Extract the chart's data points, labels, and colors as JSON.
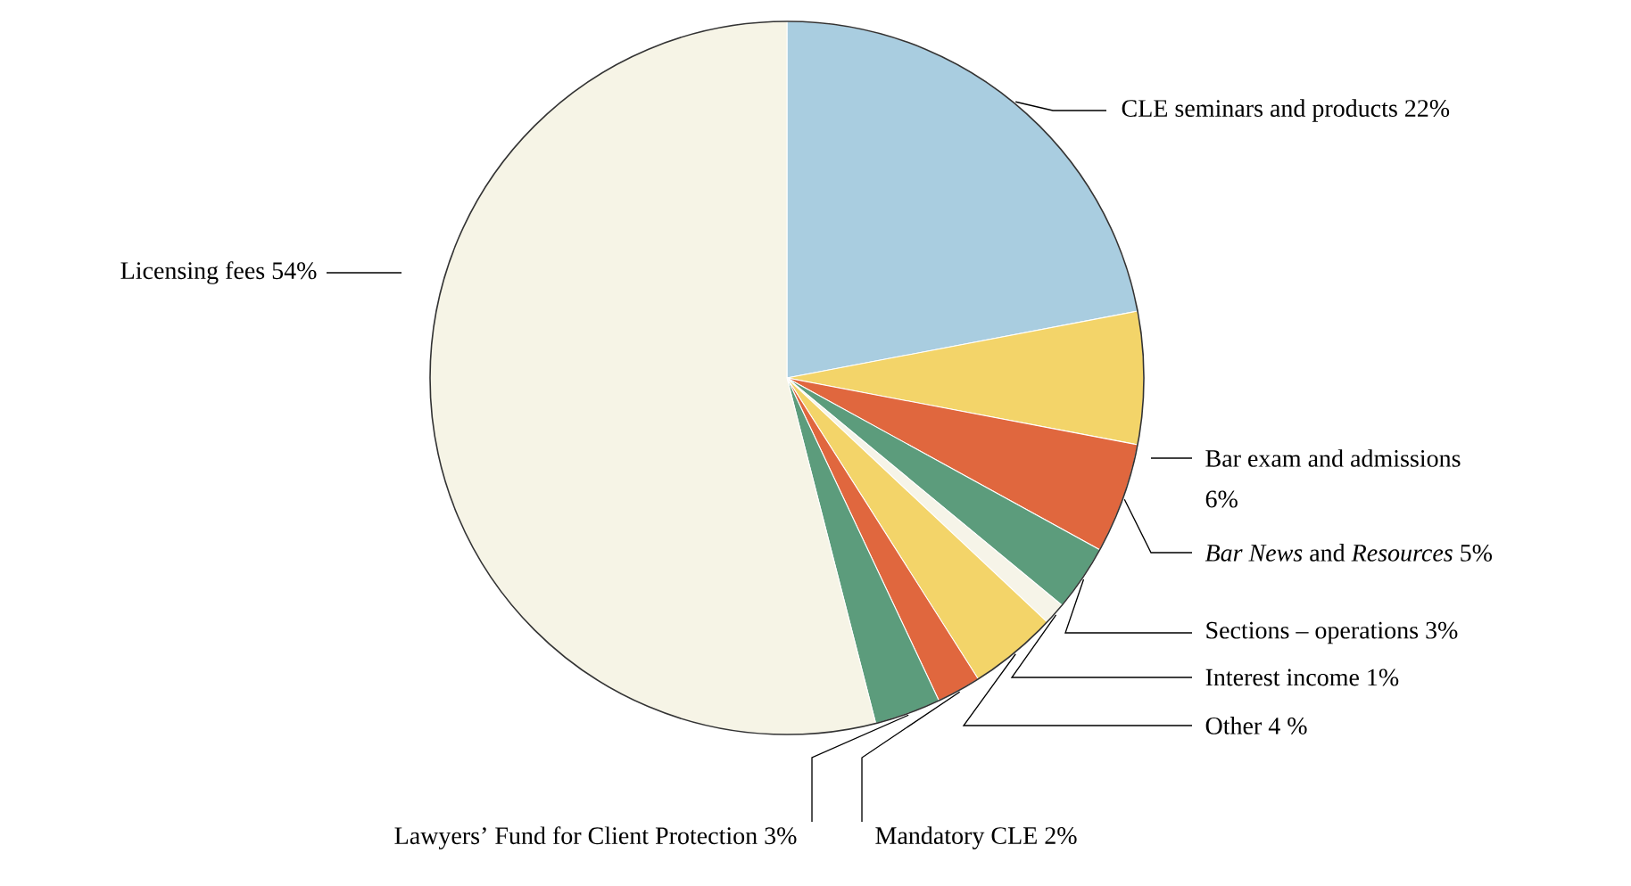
{
  "chart_data": {
    "type": "pie",
    "categories": [
      "CLE seminars and products",
      "Bar exam and admissions",
      "*Bar News* and *Resources*",
      "Sections – operations",
      "Interest income",
      "Other",
      "Mandatory CLE",
      "Lawyers’ Fund for Client Protection",
      "Licensing fees"
    ],
    "values": [
      22,
      6,
      5,
      3,
      1,
      4,
      2,
      3,
      54
    ],
    "value_labels": [
      "22%",
      "6%",
      "5%",
      "3%",
      "1%",
      "4 %",
      "2%",
      "3%",
      "54%"
    ],
    "colors": [
      "#a9cde0",
      "#f3d469",
      "#e0673e",
      "#5c9c7c",
      "#f6f4e8",
      "#f3d469",
      "#e0673e",
      "#5c9c7c",
      "#f6f4e6"
    ]
  }
}
